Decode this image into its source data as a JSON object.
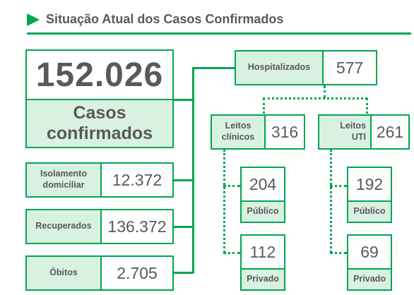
{
  "header": {
    "title": "Situação Atual dos Casos Confirmados"
  },
  "colors": {
    "accent": "#00a651",
    "fill": "#d9f1e1",
    "text": "#58595b"
  },
  "total": {
    "value": "152.026",
    "label_line1": "Casos",
    "label_line2": "confirmados"
  },
  "status": [
    {
      "label_line1": "Isolamento",
      "label_line2": "domiciliar",
      "value": "12.372"
    },
    {
      "label_line1": "Recuperados",
      "label_line2": "",
      "value": "136.372"
    },
    {
      "label_line1": "Óbitos",
      "label_line2": "",
      "value": "2.705"
    }
  ],
  "hospitalizados": {
    "label": "Hospitalizados",
    "value": "577"
  },
  "leitos_clinicos": {
    "label_line1": "Leitos",
    "label_line2": "clínicos",
    "value": "316",
    "publico": {
      "value": "204",
      "label": "Público"
    },
    "privado": {
      "value": "112",
      "label": "Privado"
    }
  },
  "leitos_uti": {
    "label_line1": "Leitos",
    "label_line2": "UTI",
    "value": "261",
    "publico": {
      "value": "192",
      "label": "Público"
    },
    "privado": {
      "value": "69",
      "label": "Privado"
    }
  }
}
